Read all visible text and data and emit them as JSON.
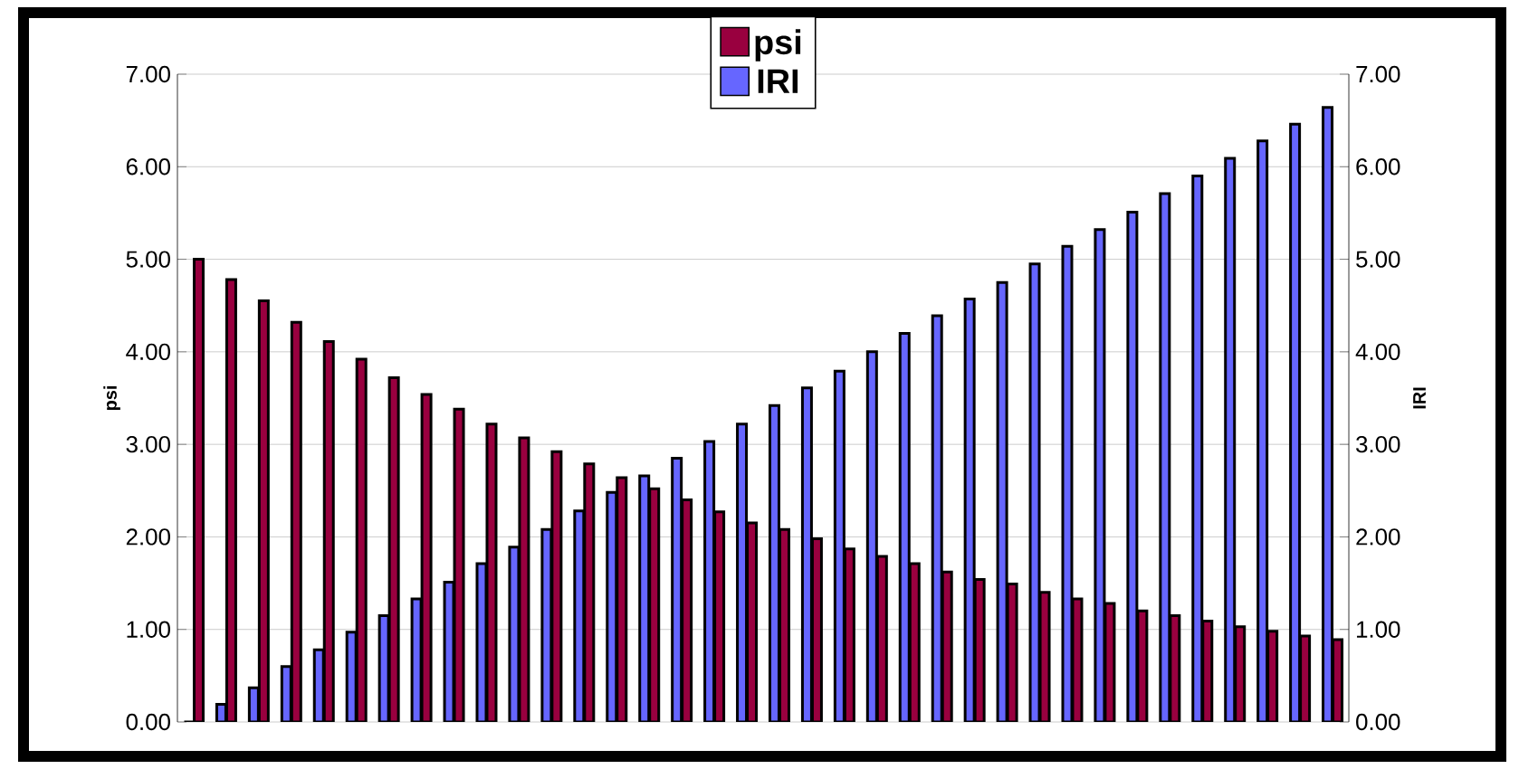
{
  "chart_data": {
    "type": "bar",
    "categories": [
      null,
      null,
      null,
      null,
      null,
      null,
      null,
      null,
      null,
      null,
      null,
      null,
      null,
      null,
      null,
      null,
      null,
      null,
      null,
      null,
      null,
      null,
      null,
      null,
      null,
      null,
      null,
      null,
      null,
      null,
      null,
      null,
      null,
      null,
      null,
      null
    ],
    "series": [
      {
        "name": "psi",
        "color": "#99003f",
        "values": [
          5.0,
          4.78,
          4.55,
          4.32,
          4.11,
          3.92,
          3.72,
          3.54,
          3.38,
          3.22,
          3.07,
          2.92,
          2.79,
          2.64,
          2.52,
          2.4,
          2.27,
          2.15,
          2.08,
          1.98,
          1.87,
          1.79,
          1.71,
          1.62,
          1.54,
          1.49,
          1.4,
          1.33,
          1.28,
          1.2,
          1.15,
          1.09,
          1.03,
          0.98,
          0.93,
          0.89
        ]
      },
      {
        "name": "IRI",
        "color": "#6666ff",
        "axis": "y2",
        "values": [
          0,
          0.19,
          0.37,
          0.6,
          0.78,
          0.97,
          1.15,
          1.33,
          1.51,
          1.71,
          1.89,
          2.08,
          2.28,
          2.48,
          2.66,
          2.85,
          3.03,
          3.22,
          3.42,
          3.61,
          3.79,
          4.0,
          4.2,
          4.39,
          4.57,
          4.75,
          4.95,
          5.14,
          5.32,
          5.51,
          5.71,
          5.9,
          6.09,
          6.28,
          6.46,
          6.64
        ]
      }
    ],
    "ylabel": "psi",
    "y2label": "IRI",
    "ylim": [
      0,
      7
    ],
    "yticks": [
      {
        "value": 0,
        "label": "0.00"
      },
      {
        "value": 1,
        "label": "1.00"
      },
      {
        "value": 2,
        "label": "2.00"
      },
      {
        "value": 3,
        "label": "3.00"
      },
      {
        "value": 4,
        "label": "4.00"
      },
      {
        "value": 5,
        "label": "5.00"
      },
      {
        "value": 6,
        "label": "6.00"
      },
      {
        "value": 7,
        "label": "7.00"
      }
    ],
    "y2lim": [
      0,
      7
    ],
    "y2ticks": [
      {
        "value": 0,
        "label": "0.00"
      },
      {
        "value": 1,
        "label": "1.00"
      },
      {
        "value": 2,
        "label": "2.00"
      },
      {
        "value": 3,
        "label": "3.00"
      },
      {
        "value": 4,
        "label": "4.00"
      },
      {
        "value": 5,
        "label": "5.00"
      },
      {
        "value": 6,
        "label": "6.00"
      },
      {
        "value": 7,
        "label": "7.00"
      }
    ],
    "grid": "y",
    "legend": "top"
  }
}
